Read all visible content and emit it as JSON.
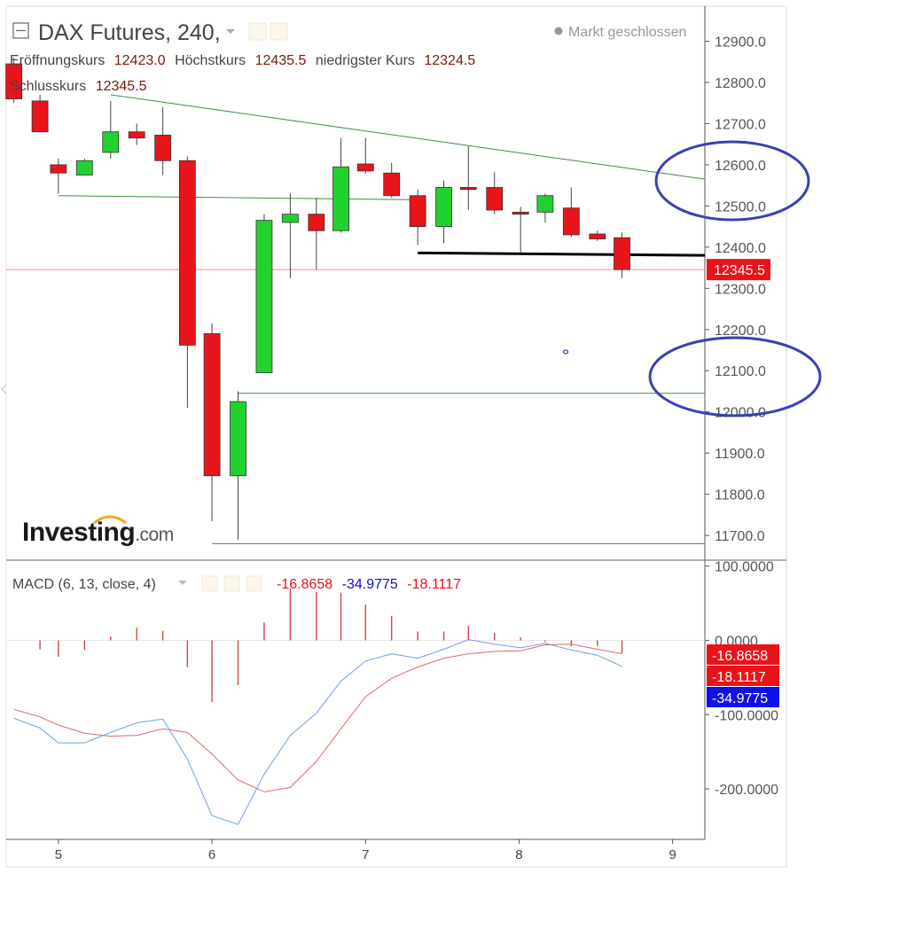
{
  "header": {
    "title": "DAX Futures, 240,",
    "status": "Markt geschlossen",
    "ohlc": [
      {
        "label": "Eröffnungskurs",
        "value": "12423.0"
      },
      {
        "label": "Höchstkurs",
        "value": "12435.5"
      },
      {
        "label": "niedrigster Kurs",
        "value": "12324.5"
      }
    ],
    "close": {
      "label": "Schlusskurs",
      "value": "12345.5"
    }
  },
  "logo": {
    "main": "Investing",
    "suffix": ".com"
  },
  "colors": {
    "up": "#22d12e",
    "down": "#e8141a",
    "macd": "#6f9ee6",
    "signal": "#d86a6a",
    "trend": "#3f8a3f",
    "annotation": "#3a40b5",
    "last_price_bg": "#e8141a"
  },
  "chart_data": [
    {
      "type": "candlestick",
      "title": "DAX Futures, 240,",
      "x_ticks": [
        "5",
        "6",
        "7",
        "8",
        "9"
      ],
      "y_ticks": [
        "12900.0",
        "12800.0",
        "12700.0",
        "12600.0",
        "12500.0",
        "12400.0",
        "12300.0",
        "12200.0",
        "12100.0",
        "12000.0",
        "11900.0",
        "11800.0",
        "11700.0"
      ],
      "ylim": [
        11640,
        12985
      ],
      "xlim": [
        4.66,
        9.21
      ],
      "last_price": {
        "value": 12345.5,
        "label": "12345.5"
      },
      "candles": [
        {
          "x": 4.71,
          "o": 12845,
          "h": 12860,
          "l": 12750,
          "c": 12760
        },
        {
          "x": 4.88,
          "o": 12755,
          "h": 12770,
          "l": 12680,
          "c": 12680
        },
        {
          "x": 5.0,
          "o": 12600,
          "h": 12615,
          "l": 12530,
          "c": 12580
        },
        {
          "x": 5.17,
          "o": 12575,
          "h": 12615,
          "l": 12575,
          "c": 12610
        },
        {
          "x": 5.34,
          "o": 12630,
          "h": 12755,
          "l": 12615,
          "c": 12680
        },
        {
          "x": 5.51,
          "o": 12680,
          "h": 12700,
          "l": 12648,
          "c": 12665
        },
        {
          "x": 5.68,
          "o": 12672,
          "h": 12740,
          "l": 12575,
          "c": 12610
        },
        {
          "x": 5.84,
          "o": 12610,
          "h": 12620,
          "l": 12010,
          "c": 12162
        },
        {
          "x": 6.0,
          "o": 12190,
          "h": 12215,
          "l": 11735,
          "c": 11845
        },
        {
          "x": 6.17,
          "o": 11845,
          "h": 12050,
          "l": 11690,
          "c": 12025
        },
        {
          "x": 6.34,
          "o": 12095,
          "h": 12480,
          "l": 12095,
          "c": 12465
        },
        {
          "x": 6.51,
          "o": 12460,
          "h": 12530,
          "l": 12325,
          "c": 12480
        },
        {
          "x": 6.68,
          "o": 12480,
          "h": 12520,
          "l": 12345,
          "c": 12440
        },
        {
          "x": 6.84,
          "o": 12440,
          "h": 12665,
          "l": 12435,
          "c": 12595
        },
        {
          "x": 7.0,
          "o": 12602,
          "h": 12665,
          "l": 12578,
          "c": 12585
        },
        {
          "x": 7.17,
          "o": 12580,
          "h": 12605,
          "l": 12520,
          "c": 12525
        },
        {
          "x": 7.34,
          "o": 12525,
          "h": 12540,
          "l": 12405,
          "c": 12450
        },
        {
          "x": 7.51,
          "o": 12450,
          "h": 12562,
          "l": 12410,
          "c": 12545
        },
        {
          "x": 7.67,
          "o": 12545,
          "h": 12645,
          "l": 12490,
          "c": 12540
        },
        {
          "x": 7.84,
          "o": 12545,
          "h": 12582,
          "l": 12480,
          "c": 12490
        },
        {
          "x": 8.01,
          "o": 12485,
          "h": 12498,
          "l": 12385,
          "c": 12480
        },
        {
          "x": 8.17,
          "o": 12485,
          "h": 12530,
          "l": 12460,
          "c": 12525
        },
        {
          "x": 8.34,
          "o": 12495,
          "h": 12545,
          "l": 12425,
          "c": 12430
        },
        {
          "x": 8.51,
          "o": 12432,
          "h": 12440,
          "l": 12415,
          "c": 12420
        },
        {
          "x": 8.67,
          "o": 12423,
          "h": 12435.5,
          "l": 12324.5,
          "c": 12345.5
        }
      ],
      "lines": [
        {
          "name": "resistance",
          "points": [
            [
              5.34,
              12770
            ],
            [
              9.21,
              12565
            ]
          ]
        },
        {
          "name": "support",
          "points": [
            [
              5.0,
              12525
            ],
            [
              7.34,
              12515
            ]
          ]
        },
        {
          "name": "horizontal-12045",
          "points": [
            [
              6.17,
              12045
            ],
            [
              9.21,
              12045
            ]
          ]
        },
        {
          "name": "horizontal-11680",
          "points": [
            [
              6.0,
              11680
            ],
            [
              9.21,
              11680
            ]
          ]
        },
        {
          "name": "black-level",
          "points": [
            [
              7.34,
              12386
            ],
            [
              9.21,
              12380
            ]
          ]
        }
      ],
      "annotations": [
        "circle around 12500–12600",
        "circle around 12000–12100"
      ]
    },
    {
      "type": "line",
      "title": "MACD (6, 13, close, 4)",
      "values_text": {
        "hist": "-16.8658",
        "macd": "-34.9775",
        "signal": "-18.1117"
      },
      "y_ticks": [
        "100.0000",
        "0.0000",
        "-100.0000",
        "-200.0000"
      ],
      "ylim": [
        -268,
        108
      ],
      "labels": [
        {
          "value": -16.8658,
          "text": "-16.8658",
          "color": "#e8141a"
        },
        {
          "value": -18.1117,
          "text": "-18.1117",
          "color": "#e8141a"
        },
        {
          "value": -34.9775,
          "text": "-34.9775",
          "color": "#1010e8"
        }
      ],
      "x": [
        4.71,
        4.88,
        5.0,
        5.17,
        5.34,
        5.51,
        5.68,
        5.84,
        6.0,
        6.17,
        6.34,
        6.51,
        6.68,
        6.84,
        7.0,
        7.17,
        7.34,
        7.51,
        7.67,
        7.84,
        8.01,
        8.17,
        8.34,
        8.51,
        8.67
      ],
      "series": [
        {
          "name": "macd",
          "values": [
            -105,
            -118,
            -138,
            -138,
            -124,
            -111,
            -106,
            -160,
            -236,
            -248,
            -180,
            -128,
            -98,
            -55,
            -28,
            -18,
            -24,
            -12,
            1,
            -5,
            -10,
            -4,
            -13,
            -20,
            -35
          ]
        },
        {
          "name": "signal",
          "values": [
            -93,
            -103,
            -114,
            -125,
            -129,
            -128,
            -119,
            -124,
            -153,
            -188,
            -204,
            -198,
            -163,
            -119,
            -76,
            -51,
            -36,
            -24,
            -18,
            -15,
            -14,
            -6,
            -5,
            -12,
            -18
          ]
        },
        {
          "name": "histogram",
          "values": [
            0,
            -12,
            -22,
            -13,
            5,
            17,
            13,
            -36,
            -83,
            -60,
            24,
            70,
            65,
            64,
            48,
            33,
            12,
            12,
            19,
            10,
            4,
            -2,
            -8,
            -8,
            -17
          ]
        }
      ]
    }
  ]
}
